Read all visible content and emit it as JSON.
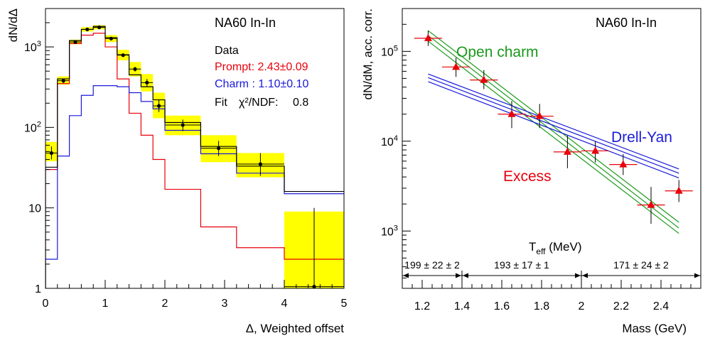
{
  "chart_data": [
    {
      "type": "step",
      "title": "NA60 In-In",
      "xlabel": "Δ, Weighted offset",
      "ylabel": "dN/dΔ",
      "xlim": [
        0,
        5
      ],
      "ylim": [
        1,
        3000
      ],
      "yscale": "log",
      "x_ticks": [
        "0",
        "1",
        "2",
        "3",
        "4",
        "5"
      ],
      "y_ticks": [
        {
          "v": 1,
          "base": "1",
          "exp": ""
        },
        {
          "v": 10,
          "base": "10",
          "exp": ""
        },
        {
          "v": 100,
          "base": "10",
          "exp": "2"
        },
        {
          "v": 1000,
          "base": "10",
          "exp": "3"
        }
      ],
      "legend": {
        "data_label": "Data",
        "prompt_label": "Prompt: 2.43±0.09",
        "charm_label": "Charm : 1.10±0.10",
        "fit_label": "Fit",
        "chi2_label": "χ²/NDF:",
        "chi2_value": "0.8"
      },
      "colors": {
        "data": "#000000",
        "prompt": "#e8000b",
        "charm": "#1a1adb",
        "total": "#000000",
        "error_band": "#ffff00"
      },
      "bin_edges": [
        0,
        0.2,
        0.4,
        0.6,
        0.8,
        1.0,
        1.2,
        1.4,
        1.6,
        1.8,
        2.0,
        2.6,
        3.2,
        4.0,
        5.0
      ],
      "data_points": [
        {
          "x": 0.1,
          "y": 48,
          "ylo": 40,
          "yhi": 58
        },
        {
          "x": 0.3,
          "y": 380,
          "ylo": 355,
          "yhi": 405
        },
        {
          "x": 0.5,
          "y": 1150,
          "ylo": 1110,
          "yhi": 1190
        },
        {
          "x": 0.7,
          "y": 1650,
          "ylo": 1600,
          "yhi": 1700
        },
        {
          "x": 0.9,
          "y": 1750,
          "ylo": 1700,
          "yhi": 1800
        },
        {
          "x": 1.1,
          "y": 1270,
          "ylo": 1220,
          "yhi": 1320
        },
        {
          "x": 1.3,
          "y": 790,
          "ylo": 750,
          "yhi": 830
        },
        {
          "x": 1.5,
          "y": 530,
          "ylo": 495,
          "yhi": 565
        },
        {
          "x": 1.7,
          "y": 360,
          "ylo": 320,
          "yhi": 400
        },
        {
          "x": 1.9,
          "y": 185,
          "ylo": 155,
          "yhi": 220
        },
        {
          "x": 2.3,
          "y": 107,
          "ylo": 90,
          "yhi": 125
        },
        {
          "x": 2.9,
          "y": 55,
          "ylo": 44,
          "yhi": 68
        },
        {
          "x": 3.6,
          "y": 35,
          "ylo": 25,
          "yhi": 48
        },
        {
          "x": 4.5,
          "y": 1.05,
          "ylo": 1.0,
          "yhi": 10
        }
      ],
      "error_boxes": [
        {
          "x0": 0.0,
          "x1": 0.2,
          "y0": 38,
          "y1": 66
        },
        {
          "x0": 0.2,
          "x1": 0.4,
          "y0": 340,
          "y1": 430
        },
        {
          "x0": 0.4,
          "x1": 0.6,
          "y0": 1080,
          "y1": 1230
        },
        {
          "x0": 0.6,
          "x1": 0.8,
          "y0": 1550,
          "y1": 1760
        },
        {
          "x0": 0.8,
          "x1": 1.0,
          "y0": 1650,
          "y1": 1860
        },
        {
          "x0": 1.0,
          "x1": 1.2,
          "y0": 1150,
          "y1": 1400
        },
        {
          "x0": 1.2,
          "x1": 1.4,
          "y0": 680,
          "y1": 920
        },
        {
          "x0": 1.4,
          "x1": 1.6,
          "y0": 430,
          "y1": 650
        },
        {
          "x0": 1.6,
          "x1": 1.8,
          "y0": 280,
          "y1": 460
        },
        {
          "x0": 1.8,
          "x1": 2.0,
          "y0": 130,
          "y1": 270
        },
        {
          "x0": 2.0,
          "x1": 2.6,
          "y0": 80,
          "y1": 140
        },
        {
          "x0": 2.6,
          "x1": 3.2,
          "y0": 37,
          "y1": 80
        },
        {
          "x0": 3.2,
          "x1": 4.0,
          "y0": 24,
          "y1": 48
        },
        {
          "x0": 4.0,
          "x1": 5.0,
          "y0": 1.0,
          "y1": 9
        }
      ],
      "series": [
        {
          "name": "Prompt",
          "key": "prompt",
          "values": [
            30,
            350,
            1100,
            1400,
            1480,
            1000,
            400,
            150,
            80,
            40,
            17,
            5.8,
            3.2,
            2.3
          ]
        },
        {
          "name": "Charm",
          "key": "charm",
          "values": [
            2.3,
            44,
            140,
            250,
            330,
            330,
            320,
            270,
            210,
            170,
            92,
            47,
            27,
            15
          ]
        },
        {
          "name": "Fit",
          "key": "total",
          "values": [
            32,
            400,
            1200,
            1650,
            1800,
            1300,
            800,
            450,
            320,
            220,
            115,
            58,
            33,
            16
          ]
        }
      ]
    },
    {
      "type": "scatter",
      "title": "NA60 In-In",
      "xlabel": "Mass (GeV)",
      "ylabel": "dN/dM, acc. corr.",
      "xlim": [
        1.1,
        2.6
      ],
      "ylim": [
        230,
        300000
      ],
      "yscale": "log",
      "x_ticks": [
        "1.2",
        "1.4",
        "1.6",
        "1.8",
        "2",
        "2.2",
        "2.4"
      ],
      "y_ticks": [
        {
          "v": 1000,
          "base": "10",
          "exp": "3"
        },
        {
          "v": 10000,
          "base": "10",
          "exp": "4"
        },
        {
          "v": 100000,
          "base": "10",
          "exp": "5"
        }
      ],
      "annotations": {
        "open_charm": "Open charm",
        "drell_yan": "Drell-Yan",
        "excess": "Excess",
        "teff_label": "T",
        "teff_sub": "eff",
        "teff_unit": "(MeV)",
        "range1": "199 ± 22 ± 2",
        "range2": "193 ± 17 ± 1",
        "range3": "171 ± 24 ± 2"
      },
      "colors": {
        "excess": "#e8000b",
        "open_charm": "#1a9a1a",
        "drell_yan": "#1a1adb"
      },
      "points": [
        {
          "x": 1.23,
          "y": 140000,
          "xerr": 0.07,
          "ylo": 115000,
          "yhi": 170000
        },
        {
          "x": 1.37,
          "y": 67000,
          "xerr": 0.07,
          "ylo": 52000,
          "yhi": 85000
        },
        {
          "x": 1.51,
          "y": 48000,
          "xerr": 0.07,
          "ylo": 38000,
          "yhi": 62000
        },
        {
          "x": 1.65,
          "y": 20000,
          "xerr": 0.07,
          "ylo": 14000,
          "yhi": 28000
        },
        {
          "x": 1.79,
          "y": 19000,
          "xerr": 0.07,
          "ylo": 14000,
          "yhi": 26000
        },
        {
          "x": 1.93,
          "y": 7600,
          "xerr": 0.07,
          "ylo": 5000,
          "yhi": 11500
        },
        {
          "x": 2.07,
          "y": 7800,
          "xerr": 0.07,
          "ylo": 5800,
          "yhi": 10000
        },
        {
          "x": 2.21,
          "y": 5500,
          "xerr": 0.07,
          "ylo": 4200,
          "yhi": 7200
        },
        {
          "x": 2.35,
          "y": 1950,
          "xerr": 0.07,
          "ylo": 1200,
          "yhi": 3100
        },
        {
          "x": 2.49,
          "y": 2800,
          "xerr": 0.07,
          "ylo": 2100,
          "yhi": 3700
        }
      ],
      "bands": [
        {
          "name": "Open charm",
          "key": "open_charm",
          "x": [
            1.23,
            2.49
          ],
          "lines": [
            [
              170000,
              1250
            ],
            [
              150000,
              1080
            ],
            [
              130000,
              940
            ]
          ]
        },
        {
          "name": "Drell-Yan",
          "key": "drell_yan",
          "x": [
            1.23,
            2.49
          ],
          "lines": [
            [
              56000,
              4900
            ],
            [
              51000,
              4400
            ],
            [
              46000,
              3900
            ]
          ]
        }
      ],
      "teff_ranges": [
        {
          "from": 1.1,
          "to": 1.4
        },
        {
          "from": 1.4,
          "to": 2.0
        },
        {
          "from": 2.0,
          "to": 2.6
        }
      ]
    }
  ]
}
